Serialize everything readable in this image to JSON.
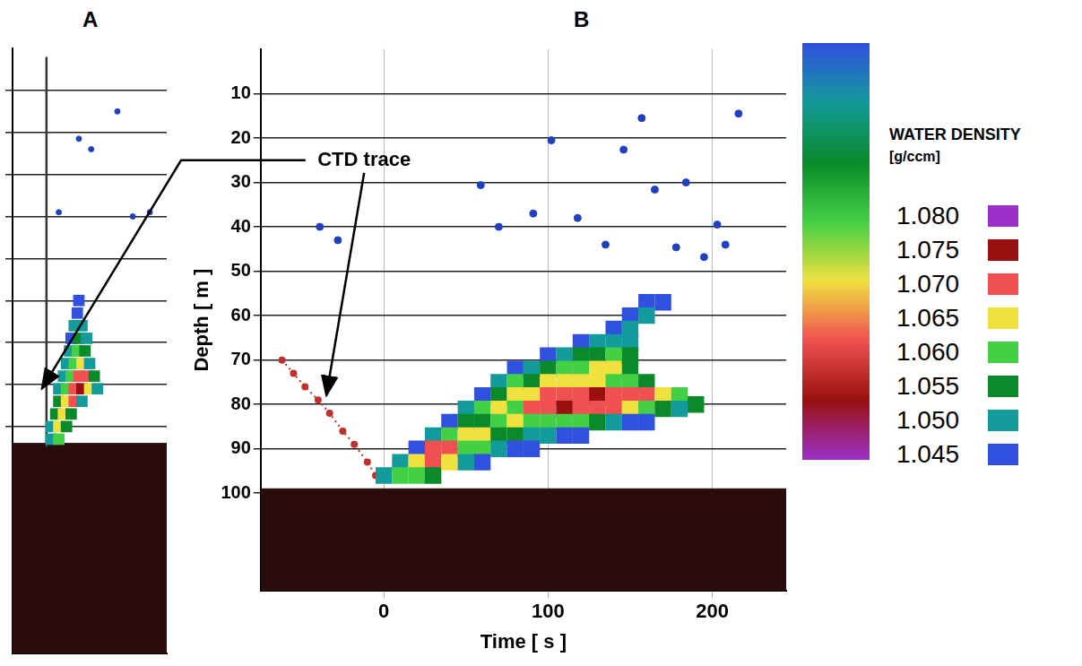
{
  "chart_data": [
    {
      "title": "A",
      "type": "scatter",
      "xlim": [
        0,
        100
      ],
      "ylim": [
        144,
        0
      ],
      "yticks": [
        10,
        20,
        30,
        40,
        50,
        60,
        70,
        80,
        90
      ],
      "grid": true,
      "tick_labels": false,
      "seabed_depth": 94,
      "cells": [
        [
          25,
          93,
          1.05
        ],
        [
          30,
          93,
          1.06
        ],
        [
          25,
          90,
          1.05
        ],
        [
          30,
          90,
          1.065
        ],
        [
          35,
          90,
          1.055
        ],
        [
          28,
          87,
          1.055
        ],
        [
          33,
          87,
          1.065
        ],
        [
          38,
          87,
          1.055
        ],
        [
          30,
          84,
          1.055
        ],
        [
          35,
          84,
          1.065
        ],
        [
          40,
          84,
          1.07
        ],
        [
          45,
          84,
          1.05
        ],
        [
          30,
          81,
          1.05
        ],
        [
          35,
          81,
          1.06
        ],
        [
          40,
          81,
          1.07
        ],
        [
          45,
          81,
          1.075
        ],
        [
          50,
          81,
          1.065
        ],
        [
          55,
          81,
          1.05
        ],
        [
          33,
          78,
          1.05
        ],
        [
          38,
          78,
          1.06
        ],
        [
          43,
          78,
          1.07
        ],
        [
          48,
          78,
          1.07
        ],
        [
          53,
          78,
          1.055
        ],
        [
          35,
          75,
          1.05
        ],
        [
          40,
          75,
          1.06
        ],
        [
          45,
          75,
          1.065
        ],
        [
          50,
          75,
          1.05
        ],
        [
          37,
          72,
          1.05
        ],
        [
          42,
          72,
          1.06
        ],
        [
          47,
          72,
          1.055
        ],
        [
          38,
          69,
          1.045
        ],
        [
          43,
          69,
          1.055
        ],
        [
          48,
          69,
          1.05
        ],
        [
          40,
          66,
          1.05
        ],
        [
          45,
          66,
          1.05
        ],
        [
          42,
          63,
          1.045
        ],
        [
          43,
          60,
          1.045
        ]
      ],
      "ctd_trace": {
        "x": [
          22,
          22
        ],
        "y": [
          2,
          95
        ],
        "color": "#333333",
        "line_style": "solid"
      },
      "echoes": {
        "x": [
          43,
          51,
          30,
          78,
          89,
          68
        ],
        "y": [
          21.5,
          24,
          39,
          40,
          39,
          15
        ],
        "color": "#2040c0",
        "marker": "circle"
      }
    },
    {
      "title": "B",
      "type": "scatter",
      "xlabel": "Time [ s ]",
      "ylabel": "Depth [ m ]",
      "xlim": [
        -75,
        245
      ],
      "xticks": [
        0,
        100,
        200
      ],
      "ylim": [
        122,
        0
      ],
      "yticks": [
        10,
        20,
        30,
        40,
        50,
        60,
        70,
        80,
        90,
        100
      ],
      "grid": true,
      "seabed_depth": 99,
      "cells": [
        [
          0,
          96,
          1.05
        ],
        [
          10,
          93,
          1.05
        ],
        [
          10,
          96,
          1.06
        ],
        [
          20,
          90,
          1.045
        ],
        [
          20,
          93,
          1.065
        ],
        [
          20,
          96,
          1.06
        ],
        [
          30,
          87,
          1.05
        ],
        [
          30,
          90,
          1.07
        ],
        [
          30,
          93,
          1.07
        ],
        [
          30,
          96,
          1.055
        ],
        [
          40,
          84,
          1.045
        ],
        [
          40,
          87,
          1.06
        ],
        [
          40,
          90,
          1.07
        ],
        [
          40,
          93,
          1.065
        ],
        [
          50,
          81,
          1.05
        ],
        [
          50,
          84,
          1.055
        ],
        [
          50,
          87,
          1.065
        ],
        [
          50,
          90,
          1.06
        ],
        [
          50,
          93,
          1.05
        ],
        [
          60,
          78,
          1.045
        ],
        [
          60,
          81,
          1.06
        ],
        [
          60,
          84,
          1.055
        ],
        [
          60,
          87,
          1.065
        ],
        [
          60,
          90,
          1.06
        ],
        [
          60,
          93,
          1.045
        ],
        [
          70,
          75,
          1.05
        ],
        [
          70,
          78,
          1.055
        ],
        [
          70,
          81,
          1.065
        ],
        [
          70,
          84,
          1.06
        ],
        [
          70,
          87,
          1.055
        ],
        [
          70,
          90,
          1.05
        ],
        [
          80,
          72,
          1.045
        ],
        [
          80,
          75,
          1.06
        ],
        [
          80,
          78,
          1.065
        ],
        [
          80,
          81,
          1.06
        ],
        [
          80,
          84,
          1.065
        ],
        [
          80,
          87,
          1.055
        ],
        [
          80,
          90,
          1.045
        ],
        [
          90,
          72,
          1.05
        ],
        [
          90,
          75,
          1.055
        ],
        [
          90,
          78,
          1.065
        ],
        [
          90,
          81,
          1.07
        ],
        [
          90,
          84,
          1.06
        ],
        [
          90,
          87,
          1.05
        ],
        [
          90,
          90,
          1.045
        ],
        [
          100,
          69,
          1.045
        ],
        [
          100,
          72,
          1.055
        ],
        [
          100,
          75,
          1.065
        ],
        [
          100,
          78,
          1.07
        ],
        [
          100,
          81,
          1.07
        ],
        [
          100,
          84,
          1.06
        ],
        [
          100,
          87,
          1.05
        ],
        [
          110,
          69,
          1.05
        ],
        [
          110,
          72,
          1.06
        ],
        [
          110,
          75,
          1.065
        ],
        [
          110,
          78,
          1.07
        ],
        [
          110,
          81,
          1.075
        ],
        [
          110,
          84,
          1.06
        ],
        [
          110,
          87,
          1.045
        ],
        [
          120,
          66,
          1.045
        ],
        [
          120,
          69,
          1.055
        ],
        [
          120,
          72,
          1.06
        ],
        [
          120,
          75,
          1.065
        ],
        [
          120,
          78,
          1.07
        ],
        [
          120,
          81,
          1.07
        ],
        [
          120,
          84,
          1.06
        ],
        [
          120,
          87,
          1.045
        ],
        [
          130,
          66,
          1.05
        ],
        [
          130,
          69,
          1.055
        ],
        [
          130,
          72,
          1.065
        ],
        [
          130,
          75,
          1.065
        ],
        [
          130,
          78,
          1.075
        ],
        [
          130,
          81,
          1.07
        ],
        [
          130,
          84,
          1.055
        ],
        [
          140,
          63,
          1.045
        ],
        [
          140,
          66,
          1.05
        ],
        [
          140,
          69,
          1.06
        ],
        [
          140,
          72,
          1.065
        ],
        [
          140,
          75,
          1.06
        ],
        [
          140,
          78,
          1.07
        ],
        [
          140,
          81,
          1.07
        ],
        [
          140,
          84,
          1.05
        ],
        [
          150,
          60,
          1.045
        ],
        [
          150,
          63,
          1.05
        ],
        [
          150,
          66,
          1.05
        ],
        [
          150,
          69,
          1.055
        ],
        [
          150,
          72,
          1.055
        ],
        [
          150,
          75,
          1.06
        ],
        [
          150,
          78,
          1.07
        ],
        [
          150,
          81,
          1.065
        ],
        [
          150,
          84,
          1.045
        ],
        [
          160,
          57,
          1.045
        ],
        [
          160,
          60,
          1.05
        ],
        [
          160,
          75,
          1.055
        ],
        [
          160,
          78,
          1.07
        ],
        [
          160,
          81,
          1.06
        ],
        [
          160,
          84,
          1.045
        ],
        [
          170,
          57,
          1.045
        ],
        [
          170,
          78,
          1.065
        ],
        [
          170,
          81,
          1.055
        ],
        [
          180,
          78,
          1.06
        ],
        [
          180,
          81,
          1.05
        ],
        [
          190,
          80,
          1.055
        ]
      ],
      "ctd_trace": {
        "x": [
          -62,
          -55,
          -48,
          -40,
          -33,
          -25,
          -18,
          -10,
          -5
        ],
        "y": [
          70,
          73,
          76,
          79,
          82,
          86,
          89,
          93,
          96
        ],
        "color": "#c03030",
        "line_style": "dotted"
      },
      "echoes": {
        "x": [
          157,
          102,
          146,
          216,
          184,
          59,
          91,
          118,
          70,
          135,
          -39,
          -28,
          165,
          178,
          208,
          203,
          195
        ],
        "y": [
          15.5,
          20.5,
          22.6,
          14.5,
          30,
          30.6,
          37,
          38,
          40,
          44,
          40,
          43,
          31.6,
          44.6,
          44,
          39.5,
          46.8
        ],
        "color": "#2040c0",
        "marker": "circle"
      },
      "annotations": [
        {
          "text": "CTD trace",
          "x": -12,
          "y": 25,
          "arrows": [
            {
              "panel": "B",
              "x": -35,
              "y": 78
            },
            {
              "panel": "A",
              "x": 19,
              "y": 81
            }
          ]
        }
      ],
      "colorbar": {
        "title": "WATER DENSITY",
        "unit": "[g/ccm]",
        "range": [
          1.045,
          1.08
        ],
        "ticks": [
          {
            "value": 1.08,
            "label": "1.080"
          },
          1.075,
          {
            "value": 1.07,
            "label": "1.070"
          },
          1.065,
          {
            "value": 1.06,
            "label": "1.060"
          },
          1.055,
          {
            "value": 1.05,
            "label": "1.050"
          },
          1.045
        ],
        "colors": [
          "#9b30c8",
          "#9a1010",
          "#f05050",
          "#f0e040",
          "#44d044",
          "#0a8a2a",
          "#139a9a",
          "#3050e0"
        ]
      }
    }
  ]
}
